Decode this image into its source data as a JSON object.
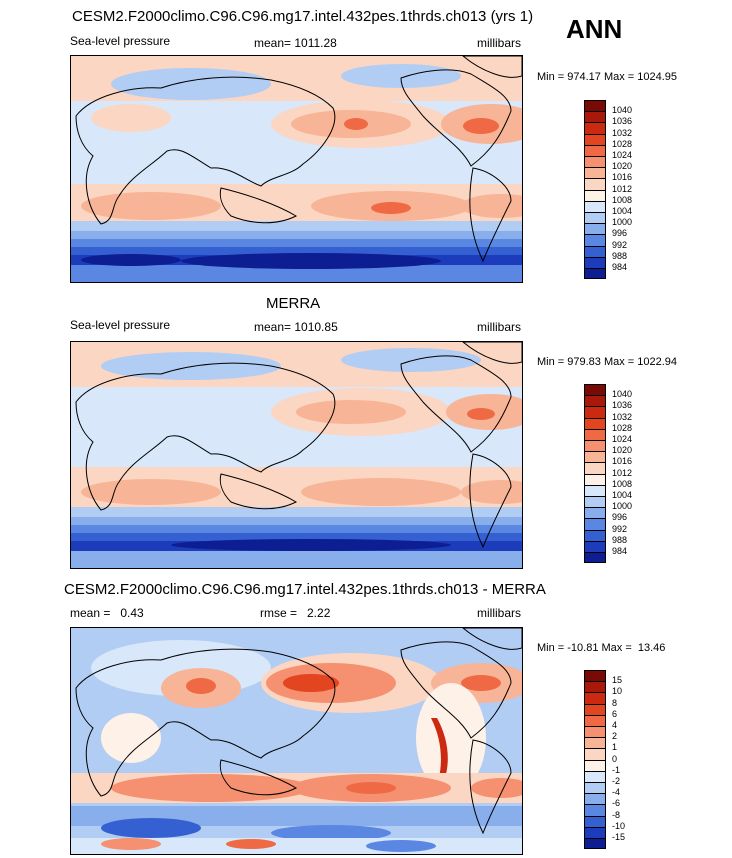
{
  "season": "ANN",
  "panels": [
    {
      "title": "CESM2.F2000climo.C96.C96.mg17.intel.432pes.1thrds.ch013 (yrs 1)",
      "left_label": "Sea-level pressure",
      "center_label": "mean= 1011.28",
      "right_label": "millibars",
      "minmax": "Min = 974.17 Max = 1024.95",
      "colorbar_labels": [
        "1040",
        "1036",
        "1032",
        "1028",
        "1024",
        "1020",
        "1016",
        "1012",
        "1008",
        "1004",
        "1000",
        "996",
        "992",
        "988",
        "984"
      ],
      "colorbar_colors": [
        "#7a0a05",
        "#a8190c",
        "#cc2a10",
        "#e2451f",
        "#ef6a44",
        "#f59070",
        "#f8b496",
        "#fbd6c2",
        "#fdf1e8",
        "#d8e7f9",
        "#b2cdf3",
        "#88aeec",
        "#5a87e2",
        "#3560d2",
        "#1c3cbb",
        "#0d1e93"
      ]
    },
    {
      "title": "MERRA",
      "left_label": "Sea-level pressure",
      "center_label": "mean= 1010.85",
      "right_label": "millibars",
      "minmax": "Min = 979.83 Max = 1022.94",
      "colorbar_labels": [
        "1040",
        "1036",
        "1032",
        "1028",
        "1024",
        "1020",
        "1016",
        "1012",
        "1008",
        "1004",
        "1000",
        "996",
        "992",
        "988",
        "984"
      ],
      "colorbar_colors": [
        "#7a0a05",
        "#a8190c",
        "#cc2a10",
        "#e2451f",
        "#ef6a44",
        "#f59070",
        "#f8b496",
        "#fbd6c2",
        "#fdf1e8",
        "#d8e7f9",
        "#b2cdf3",
        "#88aeec",
        "#5a87e2",
        "#3560d2",
        "#1c3cbb",
        "#0d1e93"
      ]
    },
    {
      "title": "CESM2.F2000climo.C96.C96.mg17.intel.432pes.1thrds.ch013 - MERRA",
      "left_label": "mean =   0.43",
      "center_label": "rmse =   2.22",
      "right_label": "millibars",
      "minmax": "Min = -10.81 Max =  13.46",
      "colorbar_labels": [
        "15",
        "10",
        "8",
        "6",
        "4",
        "2",
        "1",
        "0",
        "-1",
        "-2",
        "-4",
        "-6",
        "-8",
        "-10",
        "-15"
      ],
      "colorbar_colors": [
        "#7a0a05",
        "#a8190c",
        "#cc2a10",
        "#e2451f",
        "#ef6a44",
        "#f59070",
        "#f8b496",
        "#fbd6c2",
        "#fdf1e8",
        "#d8e7f9",
        "#b2cdf3",
        "#88aeec",
        "#5a87e2",
        "#3560d2",
        "#1c3cbb",
        "#0d1e93"
      ]
    }
  ],
  "chart_data": [
    {
      "type": "heatmap",
      "title": "CESM2.F2000climo.C96.C96.mg17.intel.432pes.1thrds.ch013 (yrs 1)",
      "variable": "Sea-level pressure",
      "units": "millibars",
      "mean": 1011.28,
      "min": 974.17,
      "max": 1024.95,
      "contour_levels": [
        984,
        988,
        992,
        996,
        1000,
        1004,
        1008,
        1012,
        1016,
        1020,
        1024,
        1028,
        1032,
        1036,
        1040
      ]
    },
    {
      "type": "heatmap",
      "title": "MERRA",
      "variable": "Sea-level pressure",
      "units": "millibars",
      "mean": 1010.85,
      "min": 979.83,
      "max": 1022.94,
      "contour_levels": [
        984,
        988,
        992,
        996,
        1000,
        1004,
        1008,
        1012,
        1016,
        1020,
        1024,
        1028,
        1032,
        1036,
        1040
      ]
    },
    {
      "type": "heatmap",
      "title": "CESM2.F2000climo.C96.C96.mg17.intel.432pes.1thrds.ch013 - MERRA",
      "units": "millibars",
      "mean": 0.43,
      "rmse": 2.22,
      "min": -10.81,
      "max": 13.46,
      "contour_levels": [
        -15,
        -10,
        -8,
        -6,
        -4,
        -2,
        -1,
        0,
        1,
        2,
        4,
        6,
        8,
        10,
        15
      ]
    }
  ]
}
